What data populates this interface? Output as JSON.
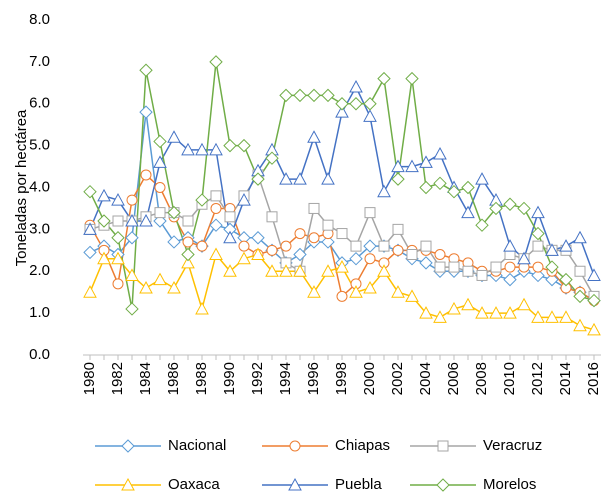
{
  "chart_data": {
    "type": "line",
    "y_label": "Toneladas por hectárea",
    "categories": [
      "1980",
      null,
      "1982",
      null,
      "1984",
      null,
      "1986",
      null,
      "1988",
      null,
      "1990",
      null,
      "1992",
      null,
      "1994",
      null,
      "1996",
      null,
      "1998",
      null,
      "2000",
      null,
      "2002",
      null,
      "2004",
      null,
      "2006",
      null,
      "2008",
      null,
      "2010",
      null,
      "2012",
      null,
      "2014",
      null,
      "2016"
    ],
    "ylim": [
      0,
      8
    ],
    "yticks": [
      {
        "value": 0,
        "label": "0.0"
      },
      {
        "value": 1,
        "label": "1.0"
      },
      {
        "value": 2,
        "label": "2.0"
      },
      {
        "value": 3,
        "label": "3.0"
      },
      {
        "value": 4,
        "label": "4.0"
      },
      {
        "value": 5,
        "label": "5.0"
      },
      {
        "value": 6,
        "label": "6.0"
      },
      {
        "value": 7,
        "label": "7.0"
      },
      {
        "value": 8,
        "label": "8.0"
      }
    ],
    "grid": false,
    "legend": "bottom",
    "series": [
      {
        "name": "Nacional",
        "color": "#5b9bd5",
        "marker": "diamond",
        "values": [
          2.45,
          2.6,
          2.4,
          2.8,
          5.8,
          3.2,
          2.7,
          2.8,
          2.6,
          3.1,
          3.0,
          2.8,
          2.8,
          2.5,
          2.2,
          2.4,
          2.7,
          2.7,
          2.2,
          2.3,
          2.6,
          2.6,
          2.5,
          2.3,
          2.2,
          2.0,
          2.0,
          2.0,
          1.9,
          1.9,
          1.8,
          2.0,
          1.9,
          1.8,
          1.6,
          1.5,
          1.3
        ]
      },
      {
        "name": "Chiapas",
        "color": "#ed7d31",
        "marker": "circle",
        "values": [
          3.1,
          2.5,
          1.7,
          3.7,
          4.3,
          4.0,
          3.3,
          2.7,
          2.6,
          3.5,
          3.5,
          2.6,
          2.4,
          2.5,
          2.6,
          2.9,
          2.8,
          2.9,
          1.4,
          1.7,
          2.3,
          2.2,
          2.5,
          2.5,
          2.5,
          2.4,
          2.3,
          2.2,
          2.0,
          2.0,
          2.1,
          2.1,
          2.1,
          2.0,
          1.6,
          1.5,
          1.3
        ]
      },
      {
        "name": "Veracruz",
        "color": "#a5a5a5",
        "marker": "square",
        "values": [
          3.0,
          3.1,
          3.2,
          3.2,
          3.3,
          3.4,
          3.4,
          3.2,
          3.6,
          3.8,
          3.3,
          3.8,
          4.3,
          3.3,
          2.2,
          2.0,
          3.5,
          3.1,
          2.9,
          2.6,
          3.4,
          2.6,
          3.0,
          2.4,
          2.6,
          2.1,
          2.1,
          2.0,
          1.9,
          2.1,
          2.4,
          2.3,
          2.6,
          2.5,
          2.5,
          2.0,
          1.4
        ]
      },
      {
        "name": "Oaxaca",
        "color": "#ffc000",
        "marker": "triangle",
        "values": [
          1.5,
          2.3,
          2.3,
          1.9,
          1.6,
          1.8,
          1.6,
          2.2,
          1.1,
          2.4,
          2.0,
          2.3,
          2.4,
          2.0,
          2.0,
          2.0,
          1.5,
          2.0,
          2.1,
          1.5,
          1.6,
          2.0,
          1.5,
          1.4,
          1.0,
          0.9,
          1.1,
          1.2,
          1.0,
          1.0,
          1.0,
          1.2,
          0.9,
          0.9,
          0.9,
          0.7,
          0.6
        ]
      },
      {
        "name": "Puebla",
        "color": "#4472c4",
        "marker": "triangle",
        "values": [
          3.0,
          3.8,
          3.7,
          3.2,
          3.2,
          4.6,
          5.2,
          4.9,
          4.9,
          4.9,
          2.8,
          3.7,
          4.4,
          4.9,
          4.2,
          4.2,
          5.2,
          4.2,
          5.8,
          6.4,
          5.7,
          3.9,
          4.5,
          4.5,
          4.6,
          4.8,
          4.0,
          3.4,
          4.2,
          3.7,
          2.6,
          2.3,
          3.4,
          2.5,
          2.6,
          2.8,
          1.9
        ]
      },
      {
        "name": "Morelos",
        "color": "#70ad47",
        "marker": "diamond",
        "values": [
          3.9,
          3.2,
          2.8,
          1.1,
          6.8,
          5.1,
          3.4,
          2.4,
          3.7,
          7.0,
          5.0,
          5.0,
          4.2,
          4.7,
          6.2,
          6.2,
          6.2,
          6.2,
          6.0,
          6.0,
          6.0,
          6.6,
          4.2,
          6.6,
          4.0,
          4.1,
          3.9,
          4.0,
          3.1,
          3.5,
          3.6,
          3.5,
          2.9,
          2.1,
          1.8,
          1.4,
          1.3
        ]
      }
    ]
  }
}
